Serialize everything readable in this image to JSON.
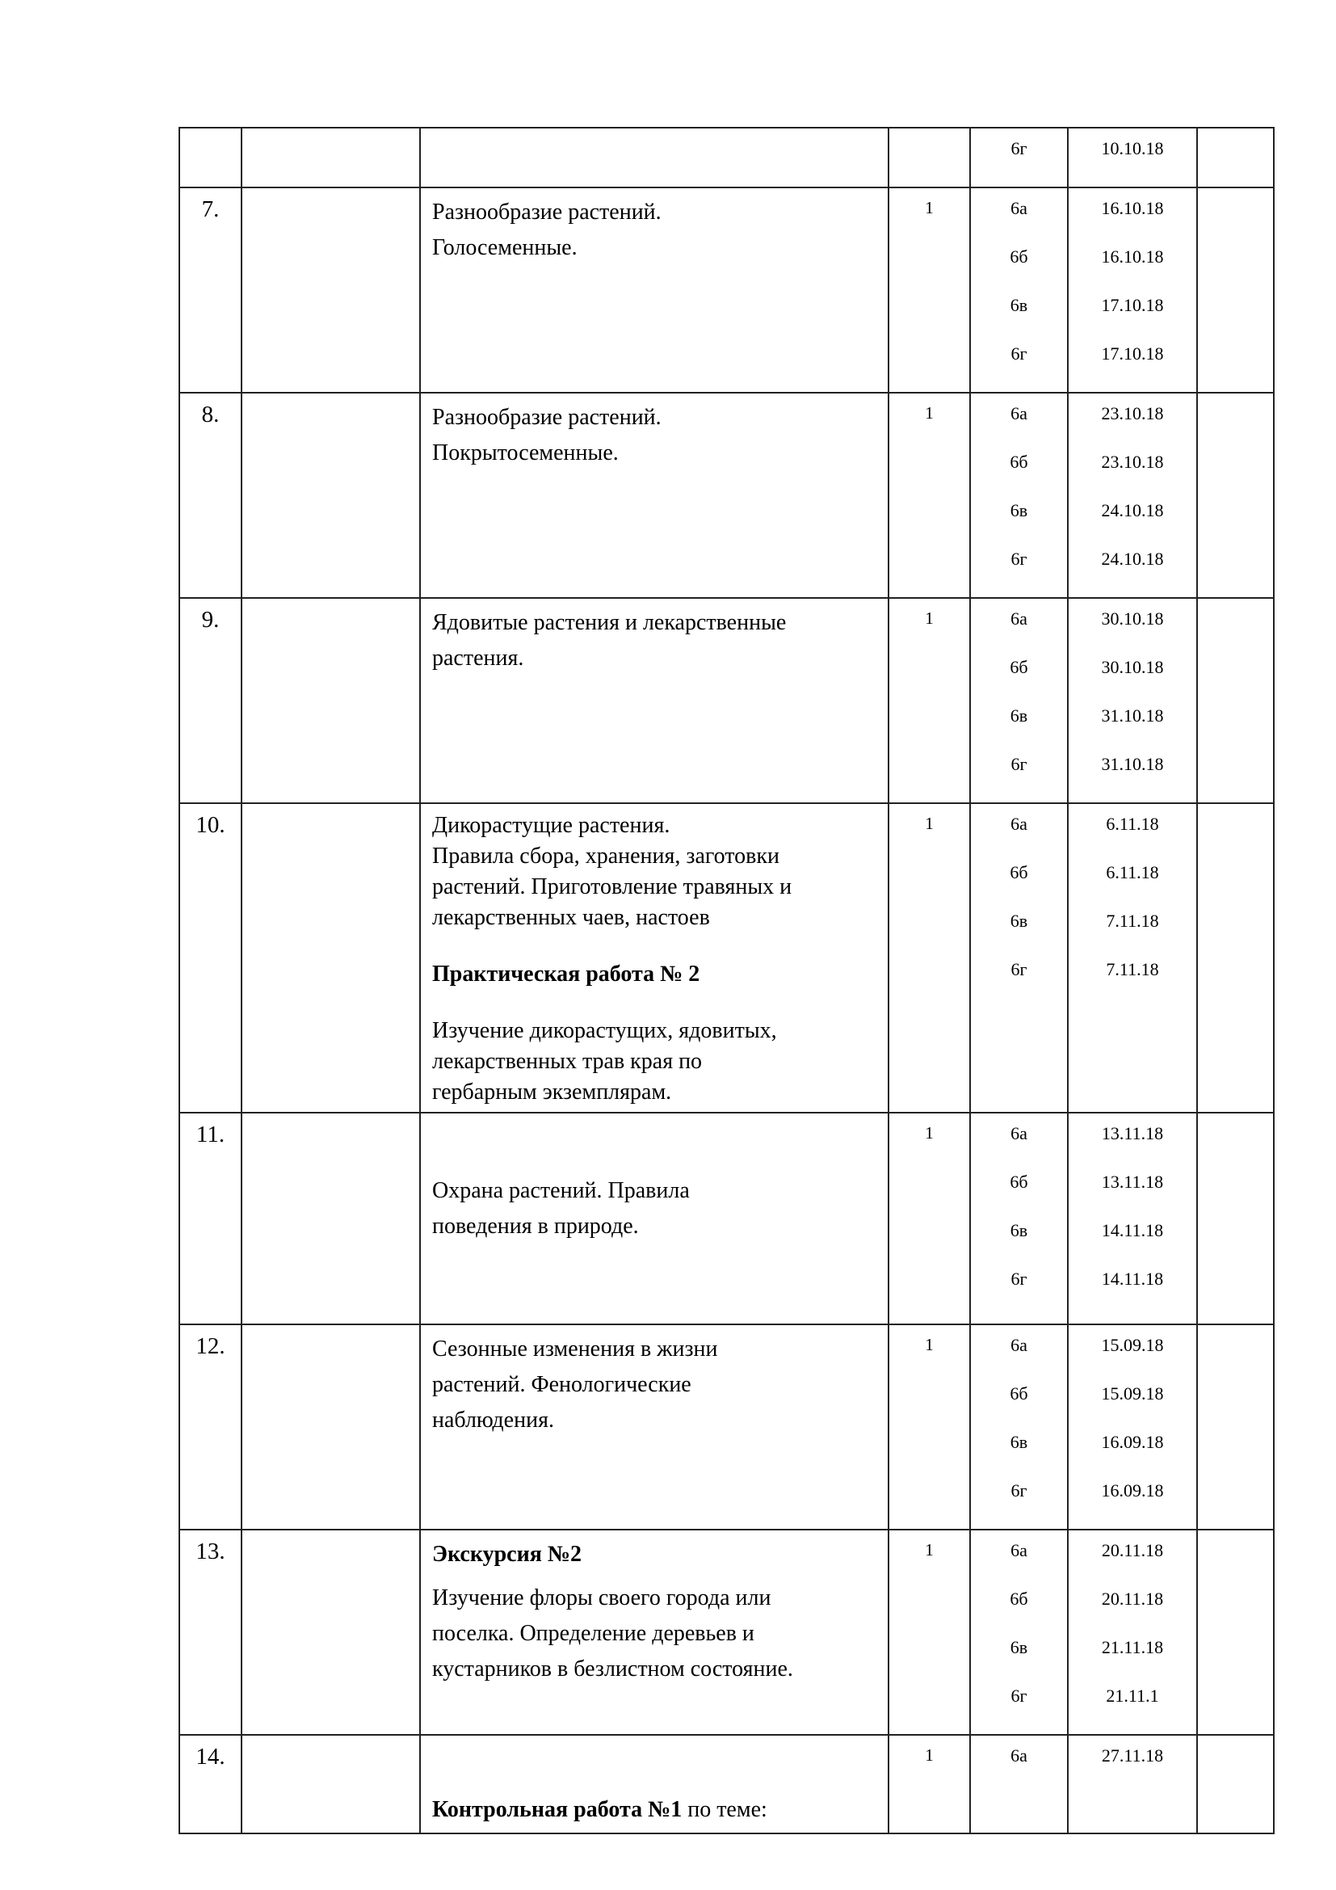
{
  "rows": [
    {
      "num": "",
      "topic": [],
      "hours": "",
      "classes": [
        "6г"
      ],
      "dates": [
        "10.10.18"
      ]
    },
    {
      "num": "7.",
      "topic": [
        "Разнообразие растений.",
        "Голосеменные."
      ],
      "hours": "1",
      "classes": [
        "6а",
        "6б",
        "6в",
        "6г"
      ],
      "dates": [
        "16.10.18",
        "16.10.18",
        "17.10.18",
        "17.10.18"
      ]
    },
    {
      "num": "8.",
      "topic": [
        "Разнообразие растений.",
        "Покрытосеменные."
      ],
      "hours": "1",
      "classes": [
        "6а",
        "6б",
        "6в",
        "6г"
      ],
      "dates": [
        "23.10.18",
        "23.10.18",
        "24.10.18",
        "24.10.18"
      ]
    },
    {
      "num": "9.",
      "topic": [
        "Ядовитые растения и лекарственные",
        "растения."
      ],
      "hours": "1",
      "classes": [
        "6а",
        "6б",
        "6в",
        "6г"
      ],
      "dates": [
        "30.10.18",
        "30.10.18",
        "31.10.18",
        "31.10.18"
      ]
    },
    {
      "num": "10.",
      "topic": [
        "Дикорастущие  растения.",
        "Правила сбора, хранения, заготовки",
        "растений. Приготовление травяных и",
        "лекарственных чаев, настоев"
      ],
      "bold": "Практическая работа № 2",
      "topic2": [
        "Изучение дикорастущих,  ядовитых,",
        "лекарственных трав края по",
        "гербарным экземплярам."
      ],
      "hours": "1",
      "classes": [
        "6а",
        "6б",
        "6в",
        "6г"
      ],
      "dates": [
        "6.11.18",
        "6.11.18",
        "7.11.18",
        "7.11.18"
      ]
    },
    {
      "num": "11.",
      "topic": [
        "Охрана  растений. Правила",
        "поведения в природе."
      ],
      "hours": "1",
      "classes": [
        "6а",
        "6б",
        "6в",
        "6г"
      ],
      "dates": [
        "13.11.18",
        "13.11.18",
        "14.11.18",
        "14.11.18"
      ]
    },
    {
      "num": "12.",
      "topic": [
        "Сезонные изменения в жизни",
        "растений. Фенологические",
        "наблюдения."
      ],
      "hours": "1",
      "classes": [
        "6а",
        "6б",
        "6в",
        "6г"
      ],
      "dates": [
        "15.09.18",
        "15.09.18",
        "16.09.18",
        "16.09.18"
      ]
    },
    {
      "num": "13.",
      "bold": "Экскурсия №2",
      "topic": [
        "Изучение флоры своего  города или",
        "поселка. Определение деревьев и",
        "кустарников в безлистном состояние."
      ],
      "hours": "1",
      "classes": [
        "6а",
        "6б",
        "6в",
        "6г"
      ],
      "dates": [
        "20.11.18",
        "20.11.18",
        "21.11.18",
        "21.11.1"
      ]
    },
    {
      "num": "14.",
      "bold": "Контрольная работа №1",
      "topic_tail": " по теме:",
      "hours": "1",
      "classes": [
        "6а"
      ],
      "dates": [
        "27.11.18"
      ]
    }
  ]
}
